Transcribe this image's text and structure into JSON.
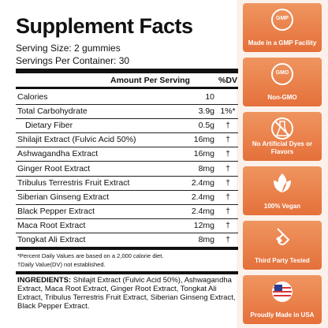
{
  "header": {
    "title": "Supplement Facts",
    "serving_size": "Serving Size: 2 gummies",
    "servings_per_container": "Servings Per Container: 30"
  },
  "table": {
    "columns": [
      "Amount Per Serving",
      "%DV"
    ],
    "rows": [
      [
        "Calories",
        "10",
        ""
      ],
      [
        "Total Carbohydrate",
        "3.9g",
        "1%*"
      ],
      [
        "Dietary Fiber",
        "0.5g",
        "†"
      ],
      [
        "Shilajit Extract (Fulvic Acid 50%)",
        "16mg",
        "†"
      ],
      [
        "Ashwagandha Extract",
        "16mg",
        "†"
      ],
      [
        "Ginger Root Extract",
        "8mg",
        "†"
      ],
      [
        "Tribulus Terrestris Fruit Extract",
        "2.4mg",
        "†"
      ],
      [
        "Siberian Ginseng Extract",
        "2.4mg",
        "†"
      ],
      [
        "Black Pepper Extract",
        "2.4mg",
        "†"
      ],
      [
        "Maca Root Extract",
        "12mg",
        "†"
      ],
      [
        "Tongkat Ali Extract",
        "8mg",
        "†"
      ]
    ]
  },
  "footnotes": [
    "*Percent Daily Values are based on a 2,000 calorie diet.",
    "†Daily Value(DV) not established."
  ],
  "ingredients": {
    "label": "INGREDIENTS:",
    "text": "Shilajit Extract (Fulvic Acid 50%), Ashwagandha Extract, Maca Root Extract, Ginger Root Extract, Tongkat Ali Extract, Tribulus Terrestris Fruit Extract, Siberian Ginseng Extract, Black Pepper Extract."
  },
  "badges": [
    {
      "label": "Made in a GMP Facility",
      "icon": "GMP"
    },
    {
      "label": "Non-GMO",
      "icon": "GMO"
    },
    {
      "label": "No Artificial Dyes or Flavors"
    },
    {
      "label": "100% Vegan"
    },
    {
      "label": "Third Party Tested"
    },
    {
      "label": "Proudly Made in USA"
    }
  ]
}
